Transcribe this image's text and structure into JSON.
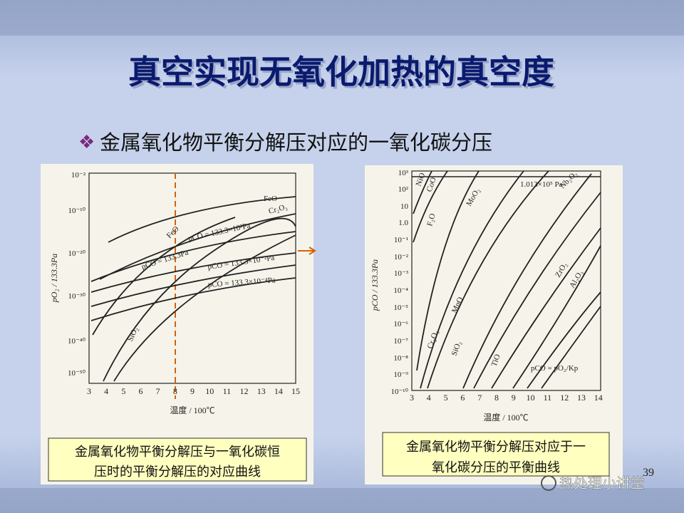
{
  "title": "真空实现无氧化加热的真空度",
  "bullet": "金属氧化物平衡分解压对应的一氧化碳分压",
  "figures": [
    {
      "y_label": "pO₂ / 133.3Pa",
      "x_label": "温度 / 100℃",
      "x_ticks": [
        "3",
        "4",
        "5",
        "6",
        "7",
        "8",
        "9",
        "10",
        "11",
        "12",
        "13",
        "14",
        "15"
      ],
      "y_ticks": [
        "10⁻²",
        "10⁻¹⁰",
        "10⁻²⁰",
        "10⁻³⁰",
        "10⁻⁴⁰",
        "10⁻⁵⁰"
      ],
      "curve_labels": [
        "FeO",
        "Cr₂O₃",
        "FeO",
        "pCO = 133.3×10²Pa",
        "pCO = 133.3Pa",
        "pCO = 133.3×10⁻²Pa",
        "pCO = 133.3×10⁻⁴Pa",
        "SiO₂"
      ],
      "caption": [
        "金属氧化物平衡分解压与一氧化碳恒",
        "压时的平衡分解压的对应曲线"
      ]
    },
    {
      "y_label": "pCO / 133.3Pa",
      "x_label": "温度 / 100℃",
      "x_ticks": [
        "3",
        "4",
        "5",
        "6",
        "7",
        "8",
        "9",
        "10",
        "11",
        "12",
        "13",
        "14"
      ],
      "y_ticks": [
        "10³",
        "10²",
        "10",
        "1.0",
        "10⁻¹",
        "10⁻²",
        "10⁻³",
        "10⁻⁴",
        "10⁻⁵",
        "10⁻⁶",
        "10⁻⁷",
        "10⁻⁸",
        "10⁻⁹",
        "10⁻¹⁰"
      ],
      "curve_labels": [
        "NiO",
        "CoO",
        "F₂O",
        "MoO₂",
        "1.013×10⁵ Pa",
        "Nb₂O₂",
        "Cr₂O₃",
        "MnO",
        "SiO₂",
        "TiO",
        "ZrO₂",
        "Al₂O₃",
        "pCO = pO₂/Kp"
      ],
      "caption": [
        "金属氧化物平衡分解压对应于一",
        "氧化碳分压的平衡曲线"
      ]
    }
  ],
  "page_number": "39",
  "watermark": "热处理小讲堂"
}
